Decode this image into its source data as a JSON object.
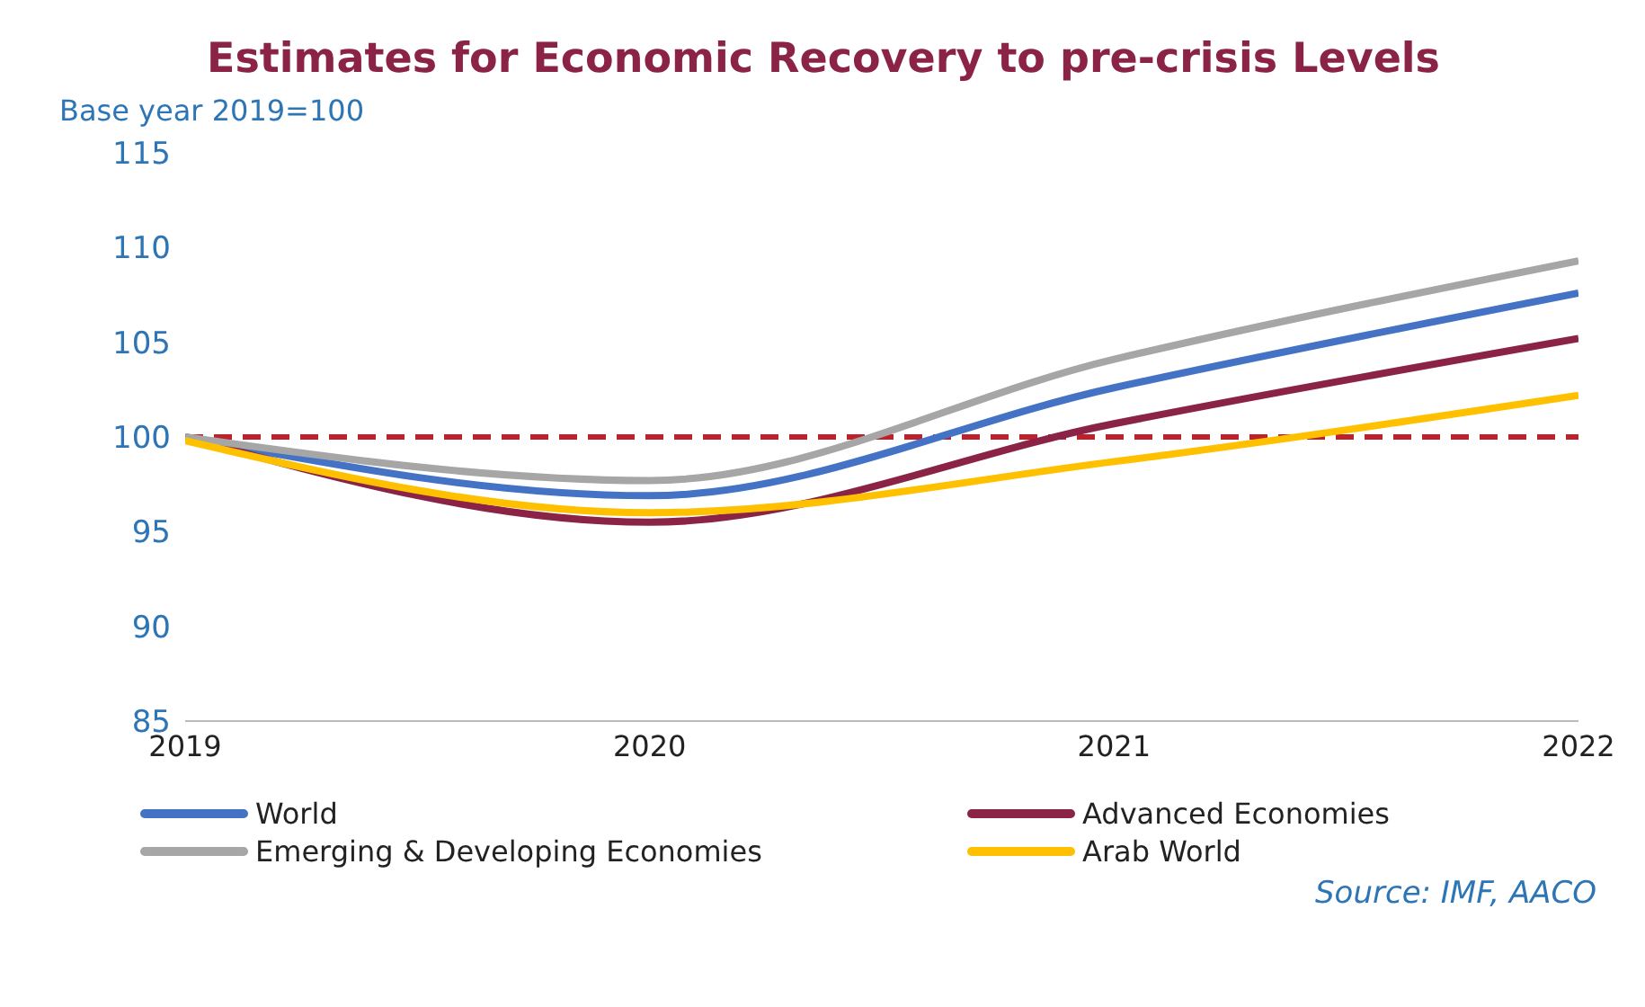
{
  "chart_data": {
    "type": "line",
    "title": "Estimates for Economic Recovery to pre-crisis Levels",
    "ylabel": "Base year 2019=100",
    "categories": [
      "2019",
      "2020",
      "2021",
      "2022"
    ],
    "series": [
      {
        "name": "World",
        "color": "#4472c4",
        "values": [
          100,
          96.9,
          102.6,
          107.6
        ]
      },
      {
        "name": "Advanced Economies",
        "color": "#8b2346",
        "values": [
          100,
          95.5,
          100.7,
          105.2
        ]
      },
      {
        "name": "Emerging & Developing Economies",
        "color": "#a6a6a6",
        "values": [
          100,
          97.7,
          104.1,
          109.3
        ]
      },
      {
        "name": "Arab World",
        "color": "#ffc000",
        "values": [
          99.8,
          96,
          98.7,
          102.2
        ]
      }
    ],
    "ylim": [
      85,
      115
    ],
    "yticks": [
      85,
      90,
      95,
      100,
      105,
      110,
      115
    ],
    "grid": false,
    "legend": "bottom",
    "marker": "none",
    "line_style": "solid",
    "ref_lines": [
      {
        "axis": "y",
        "value": 100,
        "color": "#c0202a",
        "line_style": "dashed"
      }
    ],
    "annotations": [
      "Source: IMF, AACO"
    ]
  }
}
